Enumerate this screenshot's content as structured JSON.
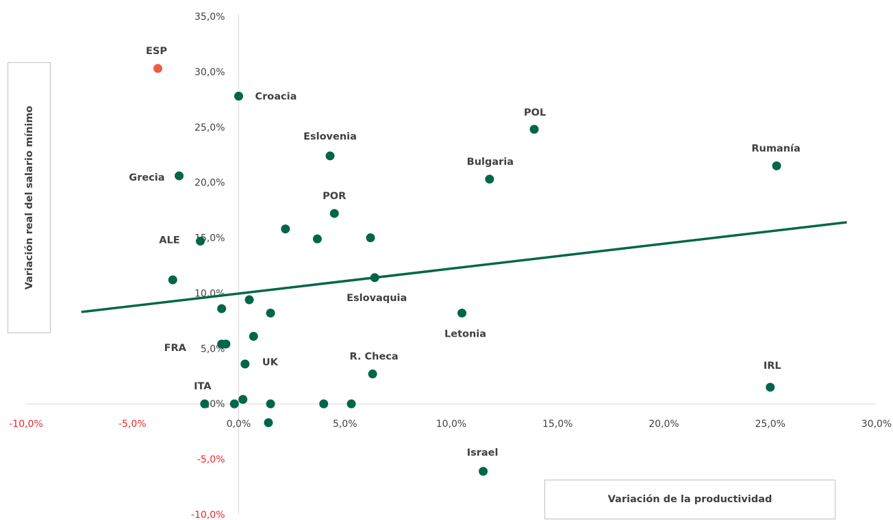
{
  "chart_data": {
    "type": "scatter",
    "xlabel": "Variación de la productividad",
    "ylabel": "Variación real del salario mínimo",
    "xlim": [
      -10,
      30
    ],
    "ylim": [
      -10,
      35
    ],
    "x_ticks": [
      -10,
      -5,
      0,
      5,
      10,
      15,
      20,
      25,
      30
    ],
    "y_ticks": [
      -10,
      -5,
      0,
      5,
      10,
      15,
      20,
      25,
      30,
      35
    ],
    "x_tick_labels": [
      "-10,0%",
      "-5,0%",
      "0,0%",
      "5,0%",
      "10,0%",
      "15,0%",
      "20,0%",
      "25,0%",
      "30,0%"
    ],
    "y_tick_labels": [
      "-10,0%",
      "-5,0%",
      "0,0%",
      "5,0%",
      "10,0%",
      "15,0%",
      "20,0%",
      "25,0%",
      "30,0%",
      "35,0%"
    ],
    "negative_tick_color": "#e8262b",
    "point_color": "#00664a",
    "highlight_color": "#ef5b46",
    "trendline": {
      "color": "#00664a",
      "x": [
        -7.4,
        28.6
      ],
      "y": [
        8.3,
        16.4
      ]
    },
    "points": [
      {
        "x": -3.8,
        "y": 30.3,
        "label": "ESP",
        "highlight": true
      },
      {
        "x": 0.0,
        "y": 27.8,
        "label": "Croacia"
      },
      {
        "x": 4.3,
        "y": 22.4,
        "label": "Eslovenia"
      },
      {
        "x": 13.9,
        "y": 24.8,
        "label": "POL"
      },
      {
        "x": 11.8,
        "y": 20.3,
        "label": "Bulgaria"
      },
      {
        "x": 25.3,
        "y": 21.5,
        "label": "Rumanía"
      },
      {
        "x": -2.8,
        "y": 20.6,
        "label": "Grecia"
      },
      {
        "x": 4.5,
        "y": 17.2,
        "label": "POR"
      },
      {
        "x": 2.2,
        "y": 15.8
      },
      {
        "x": 3.7,
        "y": 14.9
      },
      {
        "x": 6.2,
        "y": 15.0
      },
      {
        "x": -1.8,
        "y": 14.7,
        "label": "ALE"
      },
      {
        "x": -3.1,
        "y": 11.2
      },
      {
        "x": 6.4,
        "y": 11.4,
        "label": "Eslovaquia"
      },
      {
        "x": 0.5,
        "y": 9.4
      },
      {
        "x": -0.8,
        "y": 8.6
      },
      {
        "x": 1.5,
        "y": 8.2
      },
      {
        "x": 10.5,
        "y": 8.2,
        "label": "Letonia"
      },
      {
        "x": 0.7,
        "y": 6.1
      },
      {
        "x": -0.8,
        "y": 5.4
      },
      {
        "x": -0.6,
        "y": 5.4,
        "label": "FRA"
      },
      {
        "x": 0.3,
        "y": 3.6,
        "label": "UK"
      },
      {
        "x": 6.3,
        "y": 2.7,
        "label": "R. Checa"
      },
      {
        "x": 25.0,
        "y": 1.5,
        "label": "IRL"
      },
      {
        "x": 0.2,
        "y": 0.4
      },
      {
        "x": -1.6,
        "y": 0.0,
        "label": "ITA"
      },
      {
        "x": -0.2,
        "y": 0.0
      },
      {
        "x": 1.5,
        "y": 0.0
      },
      {
        "x": 4.0,
        "y": 0.0
      },
      {
        "x": 5.3,
        "y": 0.0
      },
      {
        "x": 1.4,
        "y": -1.7
      },
      {
        "x": 11.5,
        "y": -6.1,
        "label": "Israel"
      }
    ]
  }
}
